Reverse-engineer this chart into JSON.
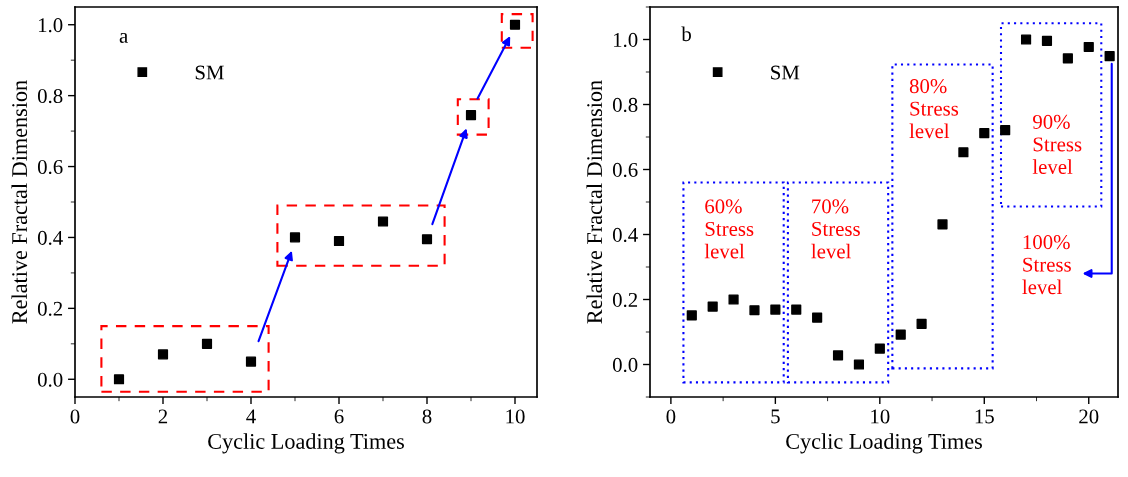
{
  "chart_data": [
    {
      "type": "scatter",
      "xlabel": "Cyclic Loading Times",
      "ylabel": "Relative Fractal Dimension",
      "x": [
        1,
        2,
        3,
        4,
        5,
        6,
        7,
        8,
        9,
        10
      ],
      "series": [
        {
          "name": "SM",
          "color": "#000000",
          "values": [
            0.0,
            0.07,
            0.1,
            0.05,
            0.4,
            0.39,
            0.445,
            0.395,
            0.745,
            1.0
          ]
        }
      ],
      "xlim": [
        0,
        10.5
      ],
      "xticks": [
        0,
        2,
        4,
        6,
        8,
        10
      ],
      "ylim": [
        -0.05,
        1.05
      ],
      "yticks": [
        {
          "value": 0,
          "label": "0.0"
        },
        {
          "value": 0.2,
          "label": "0.2"
        },
        {
          "value": 0.4,
          "label": "0.4"
        },
        {
          "value": 0.6,
          "label": "0.6"
        },
        {
          "value": 0.8,
          "label": "0.8"
        },
        {
          "value": 1.0,
          "label": "1.0"
        }
      ],
      "annotations": [
        "a"
      ],
      "marker": "square",
      "legend": "top left",
      "grid": false
    },
    {
      "type": "scatter",
      "xlabel": "Cyclic Loading Times",
      "ylabel": "Relative Fractal Dimension",
      "x": [
        1,
        2,
        3,
        4,
        5,
        6,
        7,
        8,
        9,
        10,
        11,
        12,
        13,
        14,
        15,
        16,
        17,
        18,
        19,
        20,
        21
      ],
      "series": [
        {
          "name": "SM",
          "color": "#000000",
          "values": [
            0.151,
            0.178,
            0.2,
            0.167,
            0.169,
            0.169,
            0.144,
            0.028,
            0.0,
            0.049,
            0.092,
            0.125,
            0.431,
            0.653,
            0.712,
            0.721,
            1.0,
            0.996,
            0.942,
            0.977,
            0.949
          ]
        }
      ],
      "xlim": [
        -1,
        21.4
      ],
      "xticks": [
        0,
        5,
        10,
        15,
        20
      ],
      "ylim": [
        -0.1,
        1.1
      ],
      "yticks": [
        {
          "value": 0,
          "label": "0.0"
        },
        {
          "value": 0.2,
          "label": "0.2"
        },
        {
          "value": 0.4,
          "label": "0.4"
        },
        {
          "value": 0.6,
          "label": "0.6"
        },
        {
          "value": 0.8,
          "label": "0.8"
        },
        {
          "value": 1.0,
          "label": "1.0"
        }
      ],
      "annotations": [
        "b",
        "60% Stress level",
        "70% Stress level",
        "80% Stress level",
        "90% Stress level",
        "100% Stress level"
      ],
      "marker": "square",
      "legend": "top left",
      "grid": false
    }
  ]
}
